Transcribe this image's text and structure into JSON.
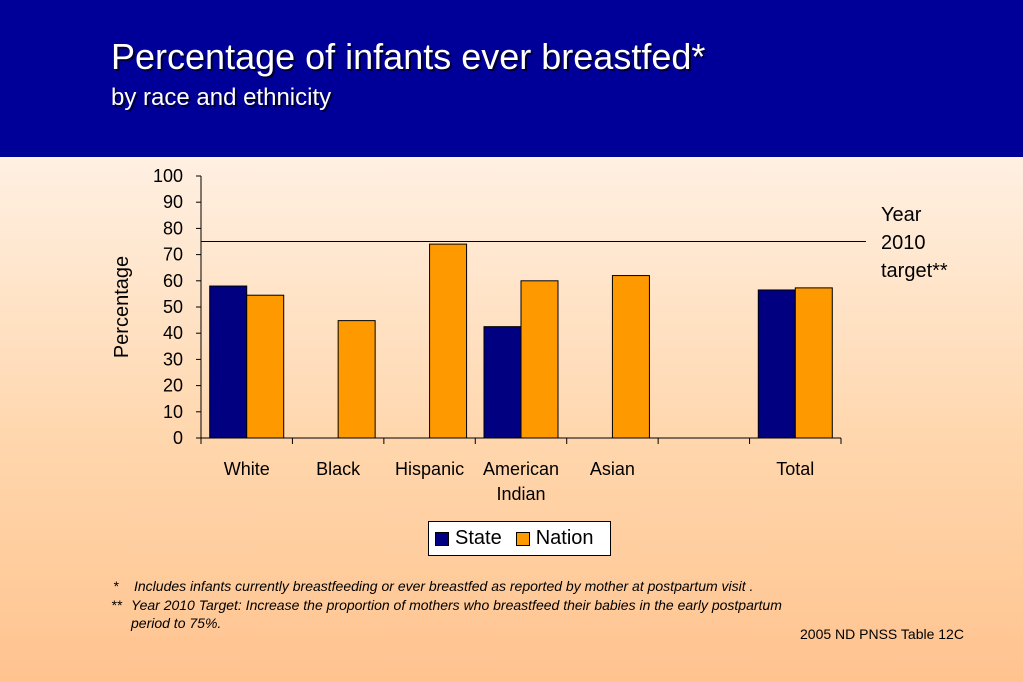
{
  "header": {
    "title": "Percentage of infants ever breastfed*",
    "subtitle": "by race and ethnicity"
  },
  "colors": {
    "header_bg": "#000099",
    "state": "#000080",
    "nation": "#ff9900"
  },
  "chart_data": {
    "type": "bar",
    "categories": [
      "White",
      "Black",
      "Hispanic",
      "American Indian",
      "Asian",
      "",
      "Total"
    ],
    "category_labels": [
      [
        "White"
      ],
      [
        "Black"
      ],
      [
        "Hispanic"
      ],
      [
        "American",
        "Indian"
      ],
      [
        "Asian"
      ],
      [],
      [
        "Total"
      ]
    ],
    "series": [
      {
        "name": "State",
        "values": [
          58,
          null,
          null,
          42.5,
          null,
          null,
          56.5
        ]
      },
      {
        "name": "Nation",
        "values": [
          54.5,
          44.8,
          74,
          60,
          62,
          null,
          57.3
        ]
      }
    ],
    "ylabel": "Percentage",
    "ylim": [
      0,
      100
    ],
    "yticks": [
      0,
      10,
      20,
      30,
      40,
      50,
      60,
      70,
      80,
      90,
      100
    ],
    "target_line": {
      "value": 75,
      "label_lines": [
        "Year",
        "2010",
        "target**"
      ]
    },
    "legend_position": "bottom-center",
    "grid": false
  },
  "footnotes": {
    "note1_marker": "*",
    "note1_text": "Includes infants currently breastfeeding or ever breastfed as reported by mother at postpartum visit .",
    "note2_marker": "**",
    "note2_text": "Year 2010 Target: Increase the proportion of mothers who breastfeed their babies in the early postpartum",
    "note2_cont": "period to 75%."
  },
  "source": "2005 ND PNSS Table 12C"
}
